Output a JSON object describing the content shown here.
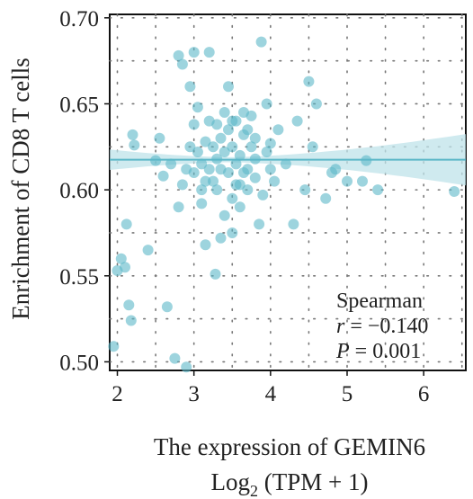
{
  "chart_data": {
    "type": "scatter",
    "title": "",
    "xlabel": "The expression of GEMIN6",
    "xlabel_line2_base": "Log",
    "xlabel_line2_sub": "2",
    "xlabel_line2_rest": " (TPM + 1)",
    "ylabel": "Enrichment of CD8 T cells",
    "xlim": [
      1.9,
      6.55
    ],
    "ylim": [
      0.495,
      0.702
    ],
    "xticks": [
      2,
      3,
      4,
      5,
      6
    ],
    "yticks": [
      0.5,
      0.55,
      0.6,
      0.65,
      0.7
    ],
    "xtick_labels": [
      "2",
      "3",
      "4",
      "5",
      "6"
    ],
    "ytick_labels": [
      "0.50",
      "0.55",
      "0.60",
      "0.65",
      "0.70"
    ],
    "grid": true,
    "point_color": "#5bb7c8",
    "fit_line": {
      "x": [
        1.9,
        6.55
      ],
      "y": [
        0.6175,
        0.6175
      ],
      "color": "#5bb7c8",
      "band_color": "#bfe3ea"
    },
    "annotation": {
      "method": "Spearman",
      "r_symbol": "r",
      "r_value": " = −0.140",
      "p_symbol": "P",
      "p_value": " = 0.001"
    },
    "points": [
      [
        1.95,
        0.509
      ],
      [
        2.0,
        0.553
      ],
      [
        2.05,
        0.56
      ],
      [
        2.1,
        0.555
      ],
      [
        2.12,
        0.58
      ],
      [
        2.15,
        0.533
      ],
      [
        2.18,
        0.524
      ],
      [
        2.2,
        0.632
      ],
      [
        2.22,
        0.626
      ],
      [
        2.4,
        0.565
      ],
      [
        2.5,
        0.617
      ],
      [
        2.55,
        0.63
      ],
      [
        2.6,
        0.608
      ],
      [
        2.65,
        0.532
      ],
      [
        2.7,
        0.615
      ],
      [
        2.75,
        0.502
      ],
      [
        2.8,
        0.678
      ],
      [
        2.85,
        0.673
      ],
      [
        2.9,
        0.497
      ],
      [
        2.95,
        0.66
      ],
      [
        3.0,
        0.68
      ],
      [
        3.05,
        0.648
      ],
      [
        3.1,
        0.592
      ],
      [
        3.15,
        0.568
      ],
      [
        3.2,
        0.68
      ],
      [
        3.28,
        0.551
      ],
      [
        3.35,
        0.572
      ],
      [
        3.4,
        0.585
      ],
      [
        3.45,
        0.66
      ],
      [
        3.5,
        0.575
      ],
      [
        3.55,
        0.64
      ],
      [
        3.6,
        0.59
      ],
      [
        3.65,
        0.645
      ],
      [
        3.7,
        0.6
      ],
      [
        3.75,
        0.643
      ],
      [
        3.8,
        0.607
      ],
      [
        3.85,
        0.58
      ],
      [
        3.88,
        0.686
      ],
      [
        3.9,
        0.597
      ],
      [
        3.95,
        0.65
      ],
      [
        4.0,
        0.627
      ],
      [
        4.05,
        0.605
      ],
      [
        4.1,
        0.635
      ],
      [
        4.2,
        0.615
      ],
      [
        4.3,
        0.58
      ],
      [
        4.35,
        0.64
      ],
      [
        4.45,
        0.6
      ],
      [
        4.5,
        0.663
      ],
      [
        4.55,
        0.625
      ],
      [
        4.6,
        0.65
      ],
      [
        4.72,
        0.595
      ],
      [
        4.8,
        0.61
      ],
      [
        4.85,
        0.612
      ],
      [
        5.0,
        0.605
      ],
      [
        5.2,
        0.605
      ],
      [
        5.25,
        0.617
      ],
      [
        5.4,
        0.6
      ],
      [
        6.4,
        0.599
      ],
      [
        2.85,
        0.603
      ],
      [
        2.8,
        0.59
      ],
      [
        3.0,
        0.61
      ],
      [
        3.05,
        0.622
      ],
      [
        3.1,
        0.615
      ],
      [
        3.15,
        0.628
      ],
      [
        3.2,
        0.612
      ],
      [
        3.25,
        0.605
      ],
      [
        3.3,
        0.618
      ],
      [
        3.35,
        0.63
      ],
      [
        3.4,
        0.622
      ],
      [
        3.45,
        0.61
      ],
      [
        3.5,
        0.625
      ],
      [
        3.55,
        0.615
      ],
      [
        3.6,
        0.62
      ],
      [
        3.65,
        0.632
      ],
      [
        3.7,
        0.612
      ],
      [
        3.75,
        0.625
      ],
      [
        3.8,
        0.618
      ],
      [
        3.3,
        0.6
      ],
      [
        3.2,
        0.64
      ],
      [
        3.4,
        0.645
      ],
      [
        3.6,
        0.603
      ],
      [
        3.0,
        0.638
      ],
      [
        3.1,
        0.6
      ],
      [
        3.5,
        0.595
      ],
      [
        3.7,
        0.635
      ],
      [
        3.25,
        0.625
      ],
      [
        3.45,
        0.635
      ],
      [
        3.55,
        0.603
      ],
      [
        2.95,
        0.625
      ],
      [
        3.35,
        0.612
      ],
      [
        3.65,
        0.61
      ],
      [
        3.15,
        0.605
      ],
      [
        3.5,
        0.64
      ],
      [
        2.9,
        0.612
      ],
      [
        3.8,
        0.63
      ],
      [
        4.0,
        0.612
      ],
      [
        3.95,
        0.622
      ],
      [
        3.3,
        0.638
      ]
    ]
  }
}
